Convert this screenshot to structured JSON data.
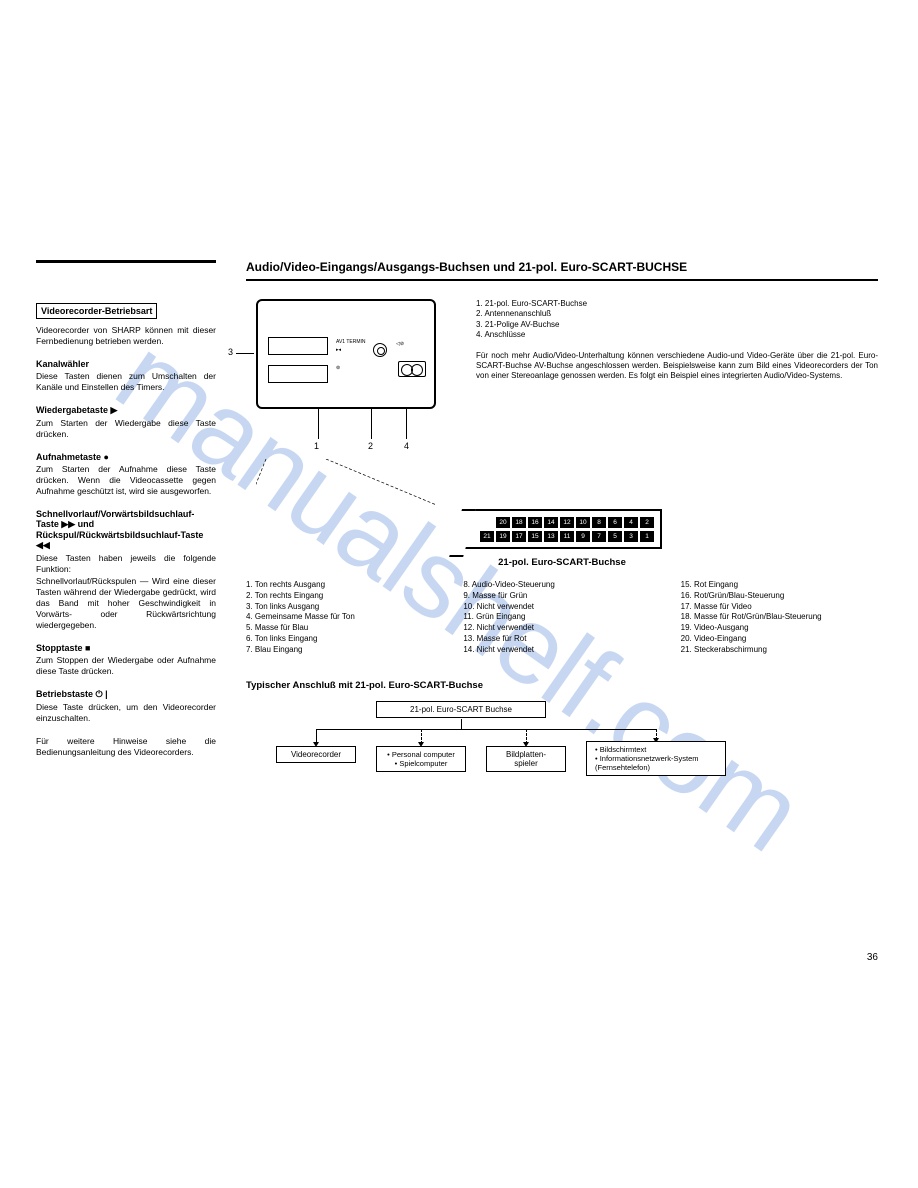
{
  "watermark": "manualshelf.com",
  "pageNumber": "36",
  "left": {
    "boxedHeading": "Videorecorder-Betriebsart",
    "intro": "Videorecorder von SHARP können mit dieser Fernbedienung betrieben werden.",
    "sections": [
      {
        "title": "Kanalwähler",
        "body": "Diese Tasten dienen zum Umschalten der Kanäle und Einstellen des Timers."
      },
      {
        "title": "Wiedergabetaste ▶",
        "body": "Zum Starten der Wiedergabe diese Taste drücken."
      },
      {
        "title": "Aufnahmetaste ●",
        "body": "Zum Starten der Aufnahme diese Taste drücken. Wenn die Videocassette gegen Aufnahme geschützt ist, wird sie ausgeworfen."
      },
      {
        "title": "Schnellvorlauf/Vorwärtsbildsuchlauf-Taste ▶▶ und Rückspul/Rückwärtsbildsuchlauf-Taste ◀◀",
        "body": "Diese Tasten haben jeweils die folgende Funktion:\nSchnellvorlauf/Rückspulen — Wird eine dieser Tasten während der Wiedergabe gedrückt, wird das Band mit hoher Geschwindigkeit in Vorwärts- oder Rückwärtsrichtung wiedergegeben."
      },
      {
        "title": "Stopptaste ■",
        "body": "Zum Stoppen der Wiedergabe oder Aufnahme diese Taste drücken."
      },
      {
        "title": "Betriebstaste ⏻ |",
        "body": "Diese Taste drücken, um den Videorecorder einzuschalten."
      }
    ],
    "footnote": "Für weitere Hinweise siehe die Bedienungsanleitung des Videorecorders."
  },
  "right": {
    "title": "Audio/Video-Eingangs/Ausgangs-Buchsen und 21-pol. Euro-SCART-BUCHSE",
    "panelCallouts": [
      "1",
      "2",
      "3",
      "4"
    ],
    "sideList": [
      "1. 21-pol. Euro-SCART-Buchse",
      "2. Antennenanschluß",
      "3. 21-Polige AV-Buchse",
      "4. Anschlüsse"
    ],
    "sidePara": "Für noch mehr Audio/Video-Unterhaltung können verschiedene Audio-und Video-Geräte über die 21-pol. Euro-SCART-Buchse AV-Buchse angeschlossen werden. Beispielsweise kann zum Bild eines Videorecorders der Ton von einer Stereoanlage genossen werden. Es folgt ein Beispiel eines integrierten Audio/Video-Systems.",
    "scartCaption": "21-pol. Euro-SCART-Buchse",
    "pinsTop": [
      "20",
      "18",
      "16",
      "14",
      "12",
      "10",
      "8",
      "6",
      "4",
      "2"
    ],
    "pinsBot": [
      "21",
      "19",
      "17",
      "15",
      "13",
      "11",
      "9",
      "7",
      "5",
      "3",
      "1"
    ],
    "pinLegend": {
      "col1": [
        "1. Ton rechts Ausgang",
        "2. Ton rechts Eingang",
        "3. Ton links Ausgang",
        "4. Gemeinsame Masse für Ton",
        "5. Masse für Blau",
        "6. Ton links Eingang",
        "7. Blau Eingang"
      ],
      "col2": [
        "8. Audio-Video-Steuerung",
        "9. Masse für Grün",
        "10. Nicht verwendet",
        "11. Grün Eingang",
        "12. Nicht verwendet",
        "13. Masse für Rot",
        "14. Nicht verwendet"
      ],
      "col3": [
        "15. Rot Eingang",
        "16. Rot/Grün/Blau-Steuerung",
        "17. Masse für Video",
        "18. Masse für Rot/Grün/Blau-Steuerung",
        "19. Video-Ausgang",
        "20. Video-Eingang",
        "21. Steckerabschirmung"
      ]
    },
    "typHeading": "Typischer Anschluß mit 21-pol. Euro-SCART-Buchse",
    "topBox": "21-pol. Euro-SCART Buchse",
    "box1": "Videorecorder",
    "box2": [
      "Personal computer",
      "Spielcomputer"
    ],
    "box3": "Bildplatten-spieler",
    "box4": [
      "Bildschirmtext",
      "Informationsnetzwerk-System (Fernsehtelefon)"
    ]
  }
}
